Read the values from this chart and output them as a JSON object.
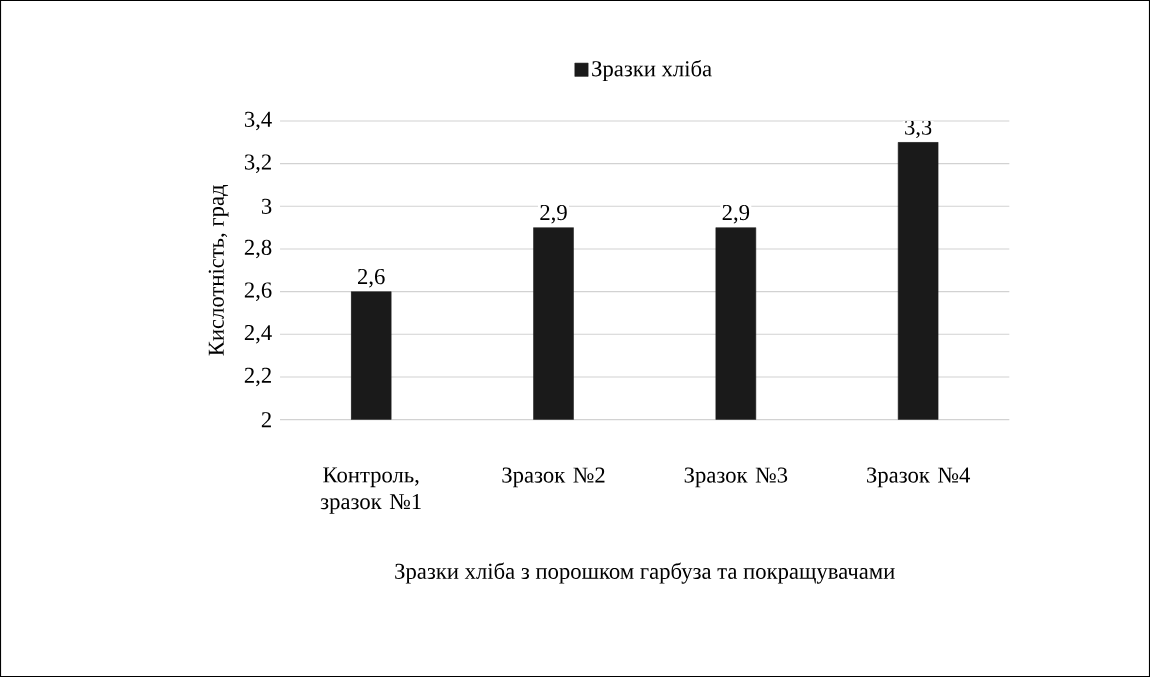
{
  "chart_data": {
    "type": "bar",
    "xlabel": "Зразки хліба з порошком гарбуза та покращувачами",
    "ylabel": "Кислотність, град",
    "categories": [
      "Контроль, зразок №1",
      "Зразок №2",
      "Зразок №3",
      "Зразок №4"
    ],
    "series": [
      {
        "name": "Зразки хліба",
        "color": "#1a1a1a",
        "values": [
          2.6,
          2.9,
          2.9,
          3.3
        ]
      }
    ],
    "value_labels": [
      "2,6",
      "2,9",
      "2,9",
      "3,3"
    ],
    "ylim": [
      2,
      3.4
    ],
    "yticks": [
      2,
      {
        "value": 2.2,
        "label": "2,2"
      },
      {
        "value": 2.4,
        "label": "2,4"
      },
      {
        "value": 2.6,
        "label": "2,6"
      },
      {
        "value": 2.8,
        "label": "2,8"
      },
      3,
      {
        "value": 3.2,
        "label": "3,2"
      },
      {
        "value": 3.4,
        "label": "3,4"
      }
    ],
    "grid": "y",
    "legend": "top"
  }
}
